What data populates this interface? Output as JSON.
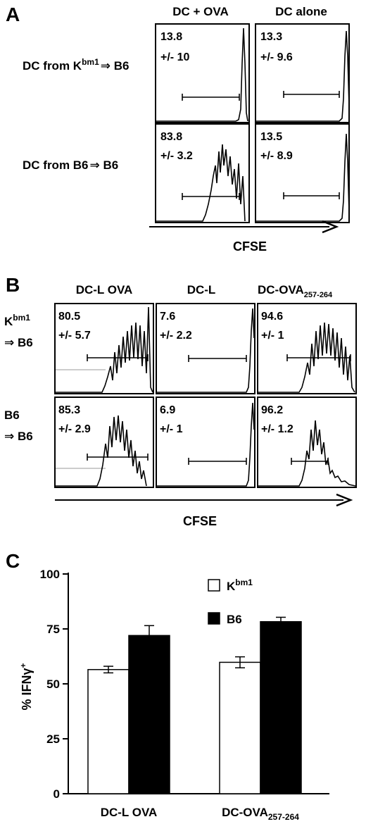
{
  "panelA": {
    "letter": "A",
    "col_headers": [
      "DC + OVA",
      "DC alone"
    ],
    "rows": [
      {
        "prefix": "DC from K",
        "sup": "bm1",
        "suffix": "⇒ B6",
        "cells": [
          {
            "value": "13.8",
            "sd": "+/- 10"
          },
          {
            "value": "13.3",
            "sd": "+/- 9.6"
          }
        ]
      },
      {
        "prefix": "DC from B6",
        "sup": "",
        "suffix": "⇒ B6",
        "cells": [
          {
            "value": "83.8",
            "sd": "+/- 3.2"
          },
          {
            "value": "13.5",
            "sd": "+/- 8.9"
          }
        ]
      }
    ],
    "axis_label": "CFSE"
  },
  "panelB": {
    "letter": "B",
    "col_headers": [
      {
        "main": "DC-L OVA",
        "sub": ""
      },
      {
        "main": "DC-L",
        "sub": ""
      },
      {
        "main": "DC-OVA",
        "sub": "257-264"
      }
    ],
    "rows": [
      {
        "line1": "K",
        "sup": "bm1",
        "line2": "⇒ B6",
        "cells": [
          {
            "value": "80.5",
            "sd": "+/- 5.7"
          },
          {
            "value": "7.6",
            "sd": "+/- 2.2"
          },
          {
            "value": "94.6",
            "sd": "+/- 1"
          }
        ]
      },
      {
        "line1": "B6",
        "sup": "",
        "line2": "⇒ B6",
        "cells": [
          {
            "value": "85.3",
            "sd": "+/- 2.9"
          },
          {
            "value": "6.9",
            "sd": "+/- 1"
          },
          {
            "value": "96.2",
            "sd": "+/- 1.2"
          }
        ]
      }
    ],
    "axis_label": "CFSE"
  },
  "panelC": {
    "letter": "C"
  },
  "chart_data": {
    "type": "bar",
    "categories": [
      {
        "main": "DC-L OVA",
        "sub": ""
      },
      {
        "main": "DC-OVA",
        "sub": "257-264"
      }
    ],
    "series": [
      {
        "name": "K",
        "name_sup": "bm1",
        "fill": "#ffffff",
        "values": [
          56.5,
          59.8
        ],
        "errors": [
          1.5,
          2.5
        ]
      },
      {
        "name": "B6",
        "name_sup": "",
        "fill": "#000000",
        "values": [
          72,
          78.3
        ],
        "errors": [
          4.5,
          2.0
        ]
      }
    ],
    "ylabel": {
      "main": "% IFNγ",
      "sup": "+"
    },
    "ylim": [
      0,
      100
    ],
    "yticks": [
      0,
      25,
      50,
      75,
      100
    ],
    "legend_position": "top-right",
    "grid": false
  }
}
